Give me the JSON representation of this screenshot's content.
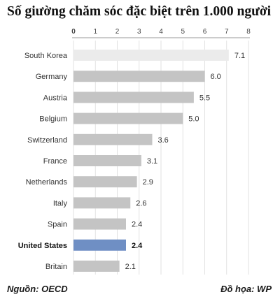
{
  "title": "Số giường chăm sóc đặc biệt trên 1.000 người",
  "source": "Nguồn: OECD",
  "credit": "Đồ họa: WP",
  "colors": {
    "default_bar": "#c4c4c4",
    "first_bar": "#ebebeb",
    "highlight_bar": "#6f8fc4",
    "grid": "#e2e2e2",
    "text": "#333333"
  },
  "chart_data": {
    "type": "bar",
    "orientation": "horizontal",
    "categories": [
      "South Korea",
      "Germany",
      "Austria",
      "Belgium",
      "Switzerland",
      "France",
      "Netherlands",
      "Italy",
      "Spain",
      "United States",
      "Britain"
    ],
    "values": [
      7.1,
      6.0,
      5.5,
      5.0,
      3.6,
      3.1,
      2.9,
      2.6,
      2.4,
      2.4,
      2.1
    ],
    "value_labels": [
      "7.1",
      "6.0",
      "5.5",
      "5.0",
      "3.6",
      "3.1",
      "2.9",
      "2.6",
      "2.4",
      "2.4",
      "2.1"
    ],
    "highlight": "United States",
    "xlim": [
      0,
      8
    ],
    "x_ticks": [
      "0",
      "1",
      "2",
      "3",
      "4",
      "5",
      "6",
      "7",
      "8"
    ],
    "grid": true,
    "xaxis_position": "top"
  }
}
